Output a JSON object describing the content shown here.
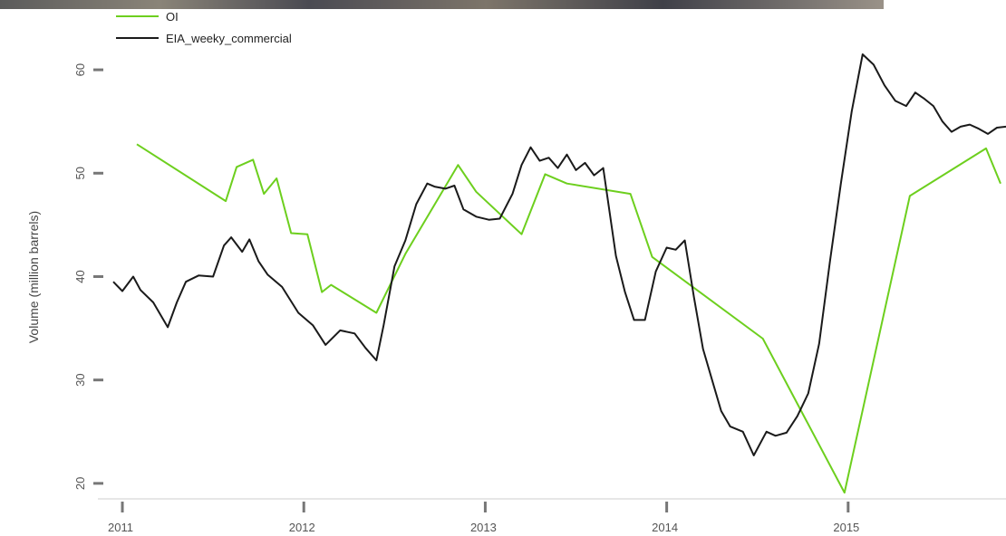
{
  "chart_data": {
    "type": "line",
    "title": "",
    "xlabel": "",
    "ylabel": "Volume (million barrels)",
    "xlim": [
      2010.9,
      2015.87
    ],
    "ylim": [
      18.5,
      65
    ],
    "x_ticks": [
      2011,
      2012,
      2013,
      2014,
      2015
    ],
    "x_tick_labels": [
      "2011",
      "2012",
      "2013",
      "2014",
      "2015"
    ],
    "y_ticks": [
      20,
      30,
      40,
      50,
      60
    ],
    "y_tick_labels": [
      "20",
      "30",
      "40",
      "50",
      "60"
    ],
    "grid": false,
    "legend": "top-left",
    "series": [
      {
        "name": "OI",
        "color": "#6dcf1e",
        "x": [
          2011.08,
          2011.57,
          2011.63,
          2011.72,
          2011.78,
          2011.85,
          2011.93,
          2012.02,
          2012.1,
          2012.15,
          2012.4,
          2012.56,
          2012.85,
          2012.95,
          2013.2,
          2013.33,
          2013.45,
          2013.8,
          2013.92,
          2014.53,
          2014.98,
          2015.34,
          2015.76,
          2015.84
        ],
        "y": [
          52.8,
          47.3,
          50.6,
          51.3,
          48.0,
          49.5,
          44.2,
          44.1,
          38.5,
          39.2,
          36.5,
          42.2,
          50.8,
          48.2,
          44.1,
          49.9,
          49.0,
          48.0,
          41.9,
          34.0,
          19.1,
          47.8,
          52.4,
          49.0
        ]
      },
      {
        "name": "EIA_weeky_commercial",
        "color": "#1a1a1a",
        "x": [
          2010.95,
          2011.0,
          2011.06,
          2011.1,
          2011.17,
          2011.25,
          2011.3,
          2011.35,
          2011.42,
          2011.5,
          2011.56,
          2011.6,
          2011.66,
          2011.7,
          2011.75,
          2011.8,
          2011.88,
          2011.97,
          2012.05,
          2012.12,
          2012.2,
          2012.28,
          2012.34,
          2012.4,
          2012.44,
          2012.5,
          2012.56,
          2012.62,
          2012.68,
          2012.72,
          2012.78,
          2012.83,
          2012.88,
          2012.95,
          2013.02,
          2013.08,
          2013.15,
          2013.2,
          2013.25,
          2013.3,
          2013.35,
          2013.4,
          2013.45,
          2013.5,
          2013.55,
          2013.6,
          2013.65,
          2013.72,
          2013.77,
          2013.82,
          2013.88,
          2013.94,
          2014.0,
          2014.05,
          2014.1,
          2014.15,
          2014.2,
          2014.25,
          2014.3,
          2014.35,
          2014.42,
          2014.48,
          2014.55,
          2014.6,
          2014.66,
          2014.72,
          2014.78,
          2014.84,
          2014.9,
          2014.96,
          2015.02,
          2015.08,
          2015.14,
          2015.2,
          2015.26,
          2015.32,
          2015.37,
          2015.42,
          2015.47,
          2015.52,
          2015.57,
          2015.62,
          2015.67,
          2015.72,
          2015.77,
          2015.82,
          2015.87
        ],
        "y": [
          39.5,
          38.6,
          40.0,
          38.7,
          37.5,
          35.1,
          37.5,
          39.5,
          40.1,
          40.0,
          43.0,
          43.8,
          42.4,
          43.6,
          41.5,
          40.2,
          39.0,
          36.5,
          35.3,
          33.4,
          34.8,
          34.5,
          33.1,
          31.9,
          35.3,
          41.0,
          43.5,
          47.0,
          49.0,
          48.7,
          48.5,
          48.8,
          46.5,
          45.8,
          45.5,
          45.6,
          48.0,
          50.8,
          52.5,
          51.2,
          51.5,
          50.5,
          51.8,
          50.3,
          51.0,
          49.8,
          50.5,
          42.0,
          38.5,
          35.8,
          35.8,
          40.5,
          42.8,
          42.6,
          43.5,
          38.0,
          33.0,
          30.0,
          27.0,
          25.5,
          25.0,
          22.7,
          25.0,
          24.6,
          24.9,
          26.5,
          28.7,
          33.5,
          41.5,
          49.0,
          56.0,
          61.5,
          60.5,
          58.5,
          57.0,
          56.5,
          57.8,
          57.2,
          56.5,
          55.0,
          54.0,
          54.5,
          54.7,
          54.3,
          53.8,
          54.4,
          54.5
        ]
      }
    ]
  }
}
